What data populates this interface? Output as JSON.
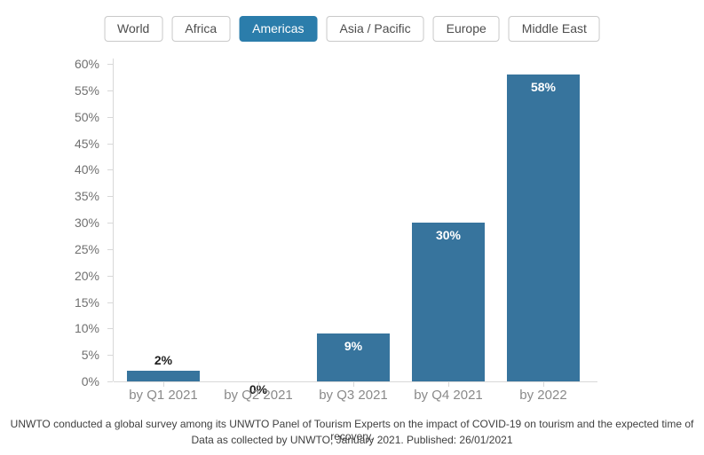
{
  "tabs": [
    {
      "label": "World",
      "active": false
    },
    {
      "label": "Africa",
      "active": false
    },
    {
      "label": "Americas",
      "active": true
    },
    {
      "label": "Asia / Pacific",
      "active": false
    },
    {
      "label": "Europe",
      "active": false
    },
    {
      "label": "Middle East",
      "active": false
    }
  ],
  "chart_data": {
    "type": "bar",
    "categories": [
      "by Q1 2021",
      "by Q2 2021",
      "by Q3 2021",
      "by Q4 2021",
      "by 2022"
    ],
    "values": [
      2,
      0,
      9,
      30,
      58
    ],
    "value_labels": [
      "2%",
      "0%",
      "9%",
      "30%",
      "58%"
    ],
    "y_ticks": [
      "0%",
      "5%",
      "10%",
      "15%",
      "20%",
      "25%",
      "30%",
      "35%",
      "40%",
      "45%",
      "50%",
      "55%",
      "60%"
    ],
    "ylim": [
      0,
      60
    ],
    "grid": false,
    "legend_position": "none",
    "title": "",
    "xlabel": "",
    "ylabel": ""
  },
  "footer": {
    "line1": "UNWTO conducted a global survey among its UNWTO Panel of Tourism Experts on the impact of COVID-19 on tourism and the expected time of recovery.",
    "line2": "Data as collected by UNWTO, January 2021. Published: 26/01/2021"
  },
  "colors": {
    "bar": "#37749d",
    "active_tab": "#2b7dab",
    "axis": "#d8d8d8",
    "y_label": "#707070",
    "x_label": "#8a8a8a",
    "value_dark": "#1e1e1e",
    "value_light": "#ffffff"
  }
}
